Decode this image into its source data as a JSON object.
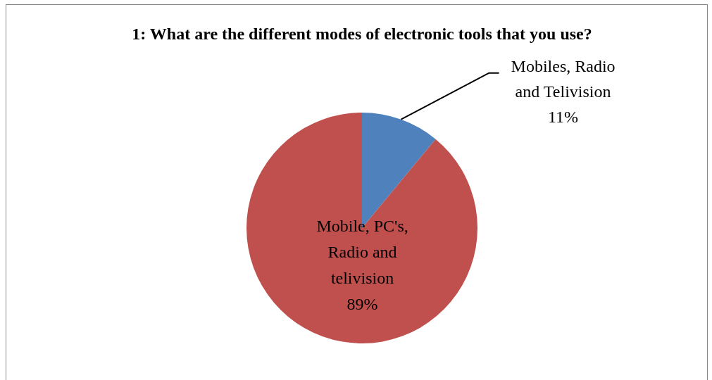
{
  "chart_data": {
    "type": "pie",
    "title": "1: What are the different modes of electronic tools that you use?",
    "categories": [
      "Mobiles, Radio and Telivision",
      "Mobile, PC's, Radio and telivision"
    ],
    "values": [
      11,
      89
    ],
    "colors": [
      "#4f81bd",
      "#c0504d"
    ],
    "value_labels": [
      "11%",
      "89%"
    ]
  }
}
